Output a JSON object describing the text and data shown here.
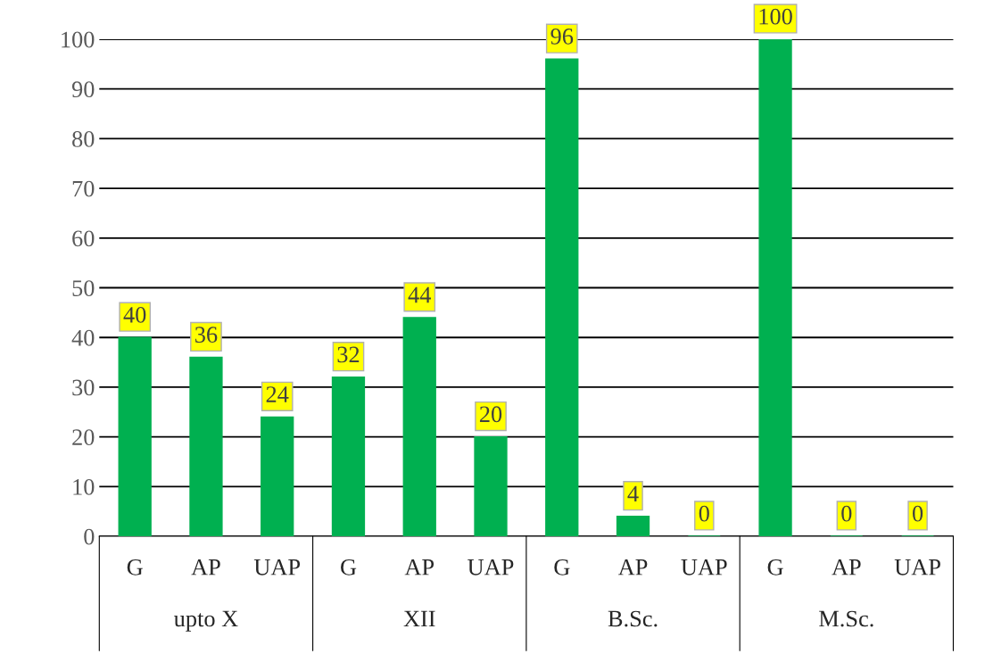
{
  "chart_data": {
    "type": "bar",
    "categories": [
      "G",
      "AP",
      "UAP",
      "G",
      "AP",
      "UAP",
      "G",
      "AP",
      "UAP",
      "G",
      "AP",
      "UAP"
    ],
    "values": [
      40,
      36,
      24,
      32,
      44,
      20,
      96,
      4,
      0,
      100,
      0,
      0
    ],
    "color": "#00b050",
    "ylim": [
      0,
      100
    ],
    "yticks": [
      0,
      10,
      20,
      30,
      40,
      50,
      60,
      70,
      80,
      90,
      100
    ],
    "grid": "y",
    "data_labels": true,
    "annotations": [
      "upto X",
      "XII",
      "B.Sc.",
      "M.Sc."
    ]
  }
}
